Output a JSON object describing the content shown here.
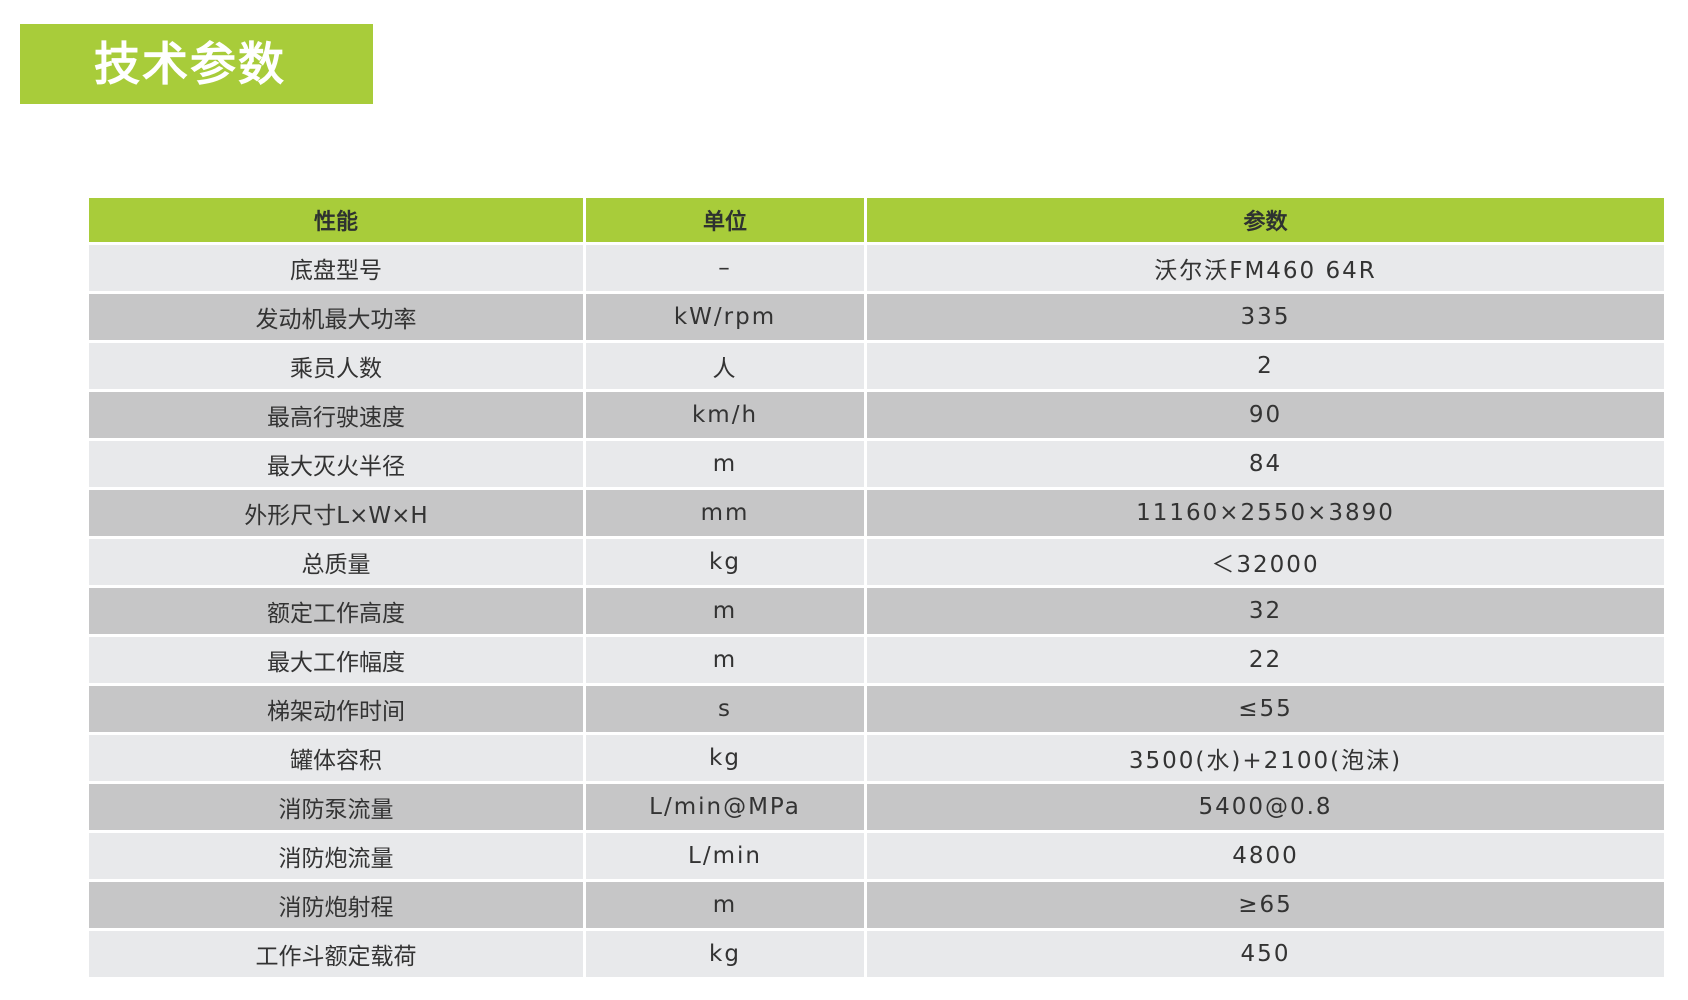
{
  "title": "技术参数",
  "colors": {
    "accent": "#a8cc3a",
    "row_light": "#e8e9eb",
    "row_dark": "#c6c6c7"
  },
  "table": {
    "headers": [
      "性能",
      "单位",
      "参数"
    ],
    "rows": [
      [
        "底盘型号",
        "–",
        "沃尔沃FM460 64R"
      ],
      [
        "发动机最大功率",
        "kW/rpm",
        "335"
      ],
      [
        "乘员人数",
        "人",
        "2"
      ],
      [
        "最高行驶速度",
        "km/h",
        "90"
      ],
      [
        "最大灭火半径",
        "m",
        "84"
      ],
      [
        "外形尺寸L×W×H",
        "mm",
        "11160×2550×3890"
      ],
      [
        "总质量",
        "kg",
        "＜32000"
      ],
      [
        "额定工作高度",
        "m",
        "32"
      ],
      [
        "最大工作幅度",
        "m",
        "22"
      ],
      [
        "梯架动作时间",
        "s",
        "≤55"
      ],
      [
        "罐体容积",
        "kg",
        "3500(水)+2100(泡沫)"
      ],
      [
        "消防泵流量",
        "L/min@MPa",
        "5400@0.8"
      ],
      [
        "消防炮流量",
        "L/min",
        "4800"
      ],
      [
        "消防炮射程",
        "m",
        "≥65"
      ],
      [
        "工作斗额定载荷",
        "kg",
        "450"
      ]
    ]
  }
}
